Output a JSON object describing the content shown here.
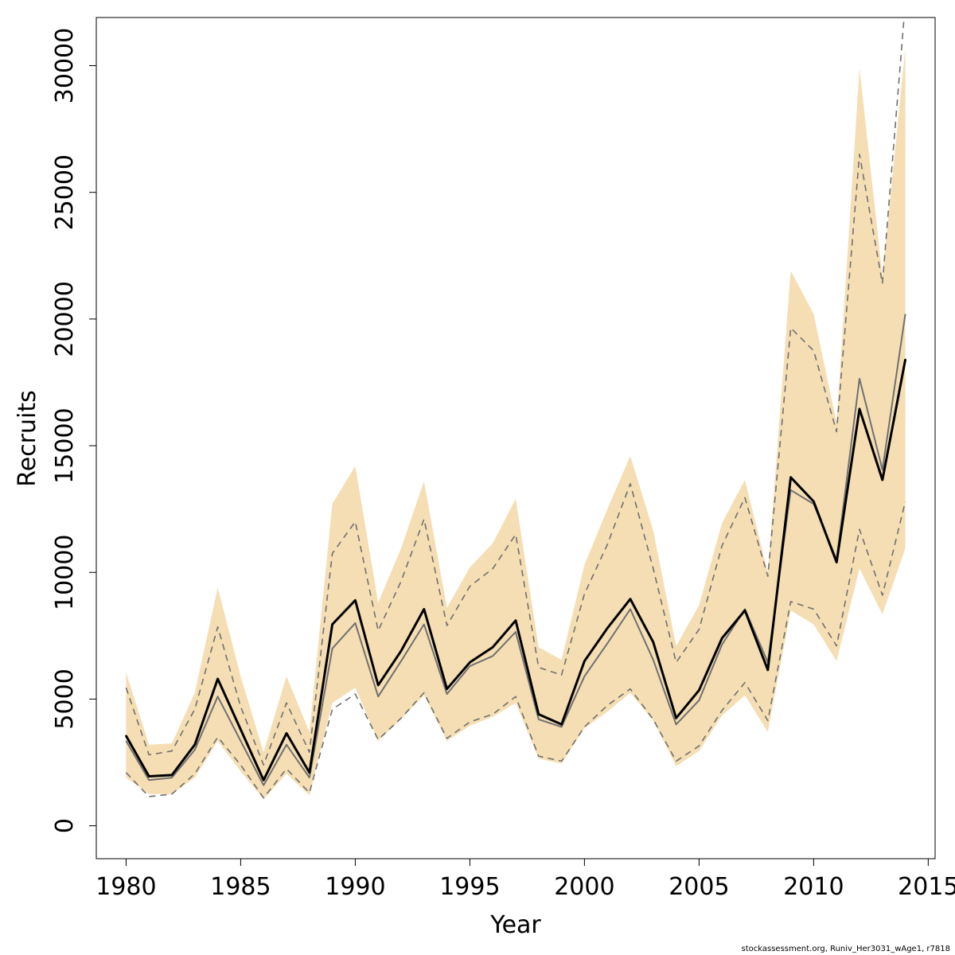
{
  "chart_data": {
    "type": "line",
    "xlabel": "Year",
    "ylabel": "Recruits",
    "xlim": [
      1978.7,
      2015.3
    ],
    "ylim": [
      -1300,
      31900
    ],
    "x_ticks": [
      1980,
      1985,
      1990,
      1995,
      2000,
      2005,
      2010,
      2015
    ],
    "y_ticks": [
      0,
      5000,
      10000,
      15000,
      20000,
      25000,
      30000
    ],
    "grid": false,
    "colors": {
      "band": "#f5deb3",
      "main_line": "#000000",
      "secondary_line": "#707070",
      "bound_dashed": "#707070",
      "axis": "#000000"
    },
    "x": [
      1980,
      1981,
      1982,
      1983,
      1984,
      1985,
      1986,
      1987,
      1988,
      1989,
      1990,
      1991,
      1992,
      1993,
      1994,
      1995,
      1996,
      1997,
      1998,
      1999,
      2000,
      2001,
      2002,
      2003,
      2004,
      2005,
      2006,
      2007,
      2008,
      2009,
      2010,
      2011,
      2012,
      2013,
      2014
    ],
    "series": [
      {
        "role": "band",
        "upper": [
          6050,
          3200,
          3250,
          5250,
          9400,
          5900,
          2900,
          5900,
          3700,
          12700,
          14200,
          8800,
          10950,
          13600,
          8600,
          10200,
          11150,
          12900,
          7050,
          6550,
          10300,
          12500,
          14600,
          11650,
          7100,
          8700,
          11950,
          13650,
          10000,
          21900,
          20200,
          15900,
          29900,
          21700,
          30700
        ],
        "lower": [
          1900,
          1250,
          1250,
          1900,
          3350,
          2150,
          1050,
          2050,
          1200,
          4850,
          5450,
          3350,
          4200,
          5150,
          3350,
          3950,
          4300,
          4850,
          2650,
          2450,
          3850,
          4500,
          5250,
          4150,
          2350,
          2950,
          4350,
          5150,
          3700,
          8500,
          7950,
          6500,
          10150,
          8350,
          10950
        ]
      },
      {
        "role": "median",
        "y": [
          3550,
          1950,
          2000,
          3200,
          5800,
          3800,
          1800,
          3650,
          2100,
          7950,
          8900,
          5550,
          6900,
          8550,
          5400,
          6450,
          7050,
          8100,
          4400,
          4000,
          6500,
          7800,
          8950,
          7250,
          4250,
          5350,
          7400,
          8500,
          6150,
          13750,
          12800,
          10400,
          16450,
          13650,
          18400
        ]
      },
      {
        "role": "secondary",
        "y": [
          3350,
          1800,
          1900,
          3000,
          5100,
          3350,
          1600,
          3200,
          1900,
          7000,
          8000,
          5100,
          6500,
          7950,
          5200,
          6300,
          6700,
          7650,
          4200,
          3900,
          5900,
          7200,
          8550,
          6550,
          4000,
          4950,
          7150,
          8550,
          6450,
          13250,
          12700,
          10500,
          17650,
          14050,
          20200
        ]
      },
      {
        "role": "upper_dashed",
        "y": [
          5450,
          2800,
          2950,
          4600,
          7850,
          4700,
          2400,
          4850,
          2900,
          10750,
          12000,
          7700,
          9650,
          12100,
          7900,
          9450,
          10150,
          11500,
          6250,
          5950,
          9150,
          11100,
          13500,
          10150,
          6450,
          7750,
          11050,
          12950,
          9850,
          19650,
          18750,
          15550,
          26500,
          21400,
          32500
        ]
      },
      {
        "role": "lower_dashed",
        "y": [
          2100,
          1150,
          1250,
          2050,
          3500,
          2400,
          1100,
          2250,
          1300,
          4600,
          5200,
          3400,
          4250,
          5250,
          3450,
          4100,
          4400,
          5100,
          2750,
          2550,
          3900,
          4750,
          5400,
          4200,
          2550,
          3150,
          4550,
          5650,
          4150,
          8850,
          8550,
          7100,
          11700,
          9100,
          12800
        ]
      }
    ]
  },
  "footer": {
    "credit": "stockassessment.org, Runiv_Her3031_wAge1, r7818"
  }
}
